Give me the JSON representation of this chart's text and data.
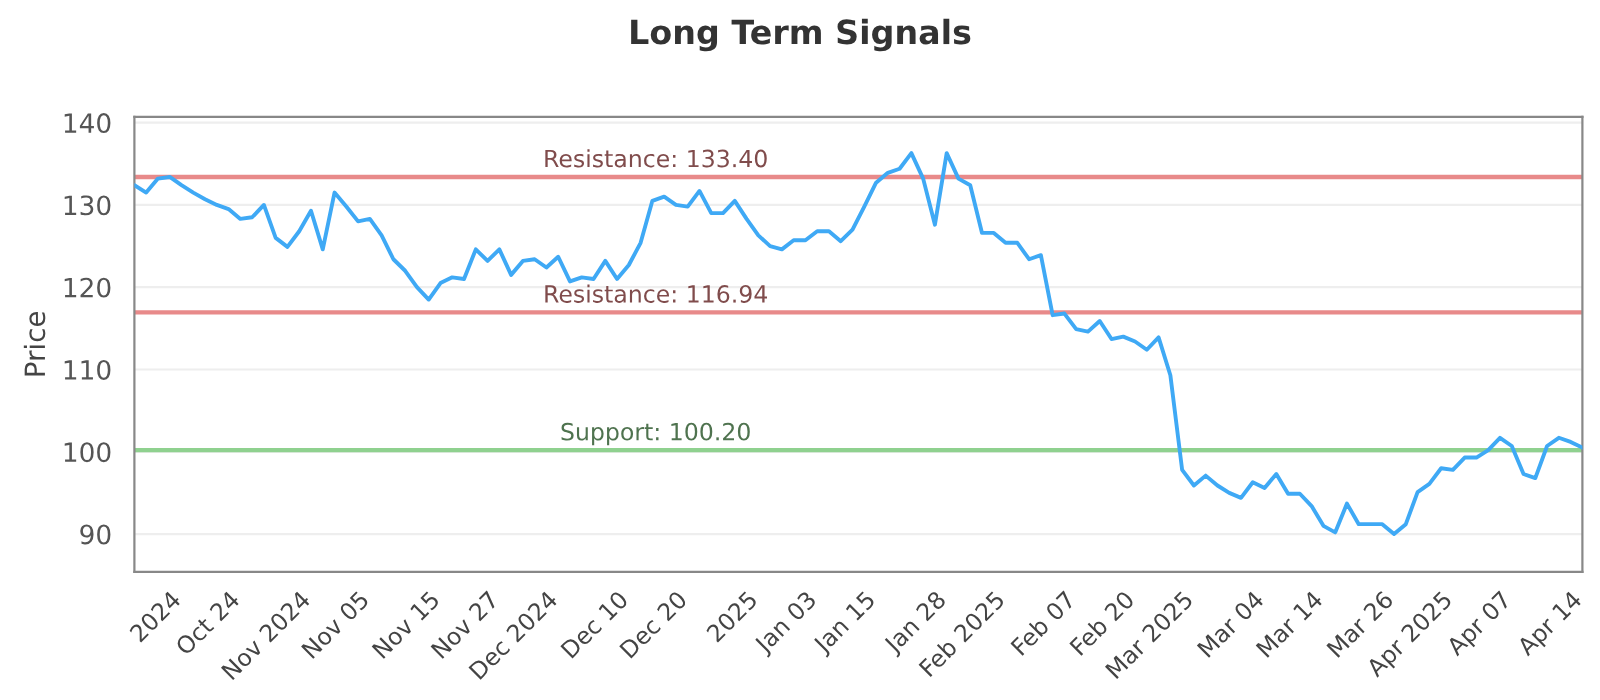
{
  "chart_data": {
    "type": "line",
    "title": "Long Term Signals",
    "ylabel": "Price",
    "categories": [
      null,
      null,
      null,
      "2024",
      null,
      null,
      null,
      null,
      "Oct 24",
      null,
      null,
      null,
      null,
      null,
      "Nov 2024",
      null,
      null,
      null,
      null,
      "Nov 05",
      null,
      null,
      null,
      null,
      null,
      "Nov 15",
      null,
      null,
      null,
      null,
      "Nov 27",
      null,
      null,
      null,
      null,
      "Dec 2024",
      null,
      null,
      null,
      null,
      null,
      "Dec 10",
      null,
      null,
      null,
      null,
      "Dec 20",
      null,
      null,
      null,
      null,
      null,
      "2025",
      null,
      null,
      null,
      null,
      "Jan 03",
      null,
      null,
      null,
      null,
      "Jan 15",
      null,
      null,
      null,
      null,
      null,
      "Jan 28",
      null,
      null,
      null,
      null,
      "Feb 2025",
      null,
      null,
      null,
      null,
      null,
      "Feb 07",
      null,
      null,
      null,
      null,
      "Feb 20",
      null,
      null,
      null,
      null,
      "Mar 2025",
      null,
      null,
      null,
      null,
      null,
      "Mar 04",
      null,
      null,
      null,
      null,
      "Mar 14",
      null,
      null,
      null,
      null,
      null,
      "Mar 26",
      null,
      null,
      null,
      null,
      "Apr 2025",
      null,
      null,
      null,
      null,
      "Apr 07",
      null,
      null,
      null,
      null,
      null,
      "Apr 14",
      null
    ],
    "series": [
      {
        "color": "#3fa9f5",
        "values": [
          132.4,
          131.5,
          133.2,
          133.4,
          132.4,
          131.5,
          130.7,
          130,
          129.5,
          128.3,
          128.5,
          130,
          126,
          124.9,
          126.8,
          129.3,
          124.6,
          131.5,
          129.8,
          128,
          128.3,
          126.3,
          123.4,
          122,
          120,
          118.5,
          120.5,
          121.2,
          121,
          124.6,
          123.2,
          124.6,
          121.5,
          123.2,
          123.4,
          122.4,
          123.7,
          120.7,
          121.2,
          121,
          123.2,
          121,
          122.7,
          125.4,
          130.5,
          131,
          130,
          129.8,
          131.7,
          129,
          129,
          130.5,
          128.3,
          126.3,
          125,
          124.6,
          125.7,
          125.7,
          126.8,
          126.8,
          125.6,
          127,
          129.8,
          132.7,
          133.9,
          134.4,
          136.3,
          133.2,
          127.6,
          136.3,
          133.2,
          132.4,
          126.6,
          126.6,
          125.4,
          125.4,
          123.4,
          123.9,
          116.6,
          116.8,
          114.9,
          114.6,
          115.9,
          113.7,
          114,
          113.4,
          112.4,
          113.9,
          109.3,
          97.8,
          95.9,
          97.1,
          95.9,
          95,
          94.4,
          96.3,
          95.6,
          97.3,
          94.9,
          94.9,
          93.4,
          91,
          90.2,
          93.7,
          91.2,
          91.2,
          91.2,
          90,
          91.2,
          95.1,
          96.1,
          98,
          97.8,
          99.3,
          99.3,
          100.2,
          101.7,
          100.7,
          97.3,
          96.8,
          100.7,
          101.7,
          101.2,
          100.5
        ]
      }
    ],
    "ylim": [
      85.4,
      140.7
    ],
    "yticks": [
      90,
      100,
      110,
      120,
      130,
      140
    ],
    "grid": "y",
    "marker": "none",
    "line_style": "solid",
    "ref_lines": [
      {
        "axis": "y",
        "value": 133.4,
        "label": "Resistance: 133.40",
        "color": "#e88a8a"
      },
      {
        "axis": "y",
        "value": 116.94,
        "label": "Resistance: 116.94",
        "color": "#e88a8a"
      },
      {
        "axis": "y",
        "value": 100.2,
        "label": "Support: 100.20",
        "color": "#8fd18f"
      }
    ]
  }
}
